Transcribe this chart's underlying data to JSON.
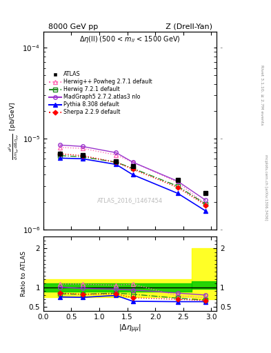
{
  "title_left": "8000 GeV pp",
  "title_right": "Z (Drell-Yan)",
  "subtitle": "$\\Delta\\eta$(ll) (500 < $m_{ll}$ < 1500 GeV)",
  "watermark": "ATLAS_2016_I1467454",
  "right_label_top": "Rivet 3.1.10, ≥ 2.7M events",
  "right_label_bottom": "mcplots.cern.ch [arXiv:1306.3436]",
  "ylabel_ratio": "Ratio to ATLAS",
  "xlabel": "$|\\Delta\\eta_{\\mu\\mu}|$",
  "xlim": [
    0,
    3.1
  ],
  "ylim_main": [
    1e-06,
    0.00015
  ],
  "ylim_ratio": [
    0.4,
    2.3
  ],
  "x_data": [
    0.3,
    0.7,
    1.3,
    1.6,
    2.4,
    2.9
  ],
  "atlas_y": [
    6.8e-06,
    6.6e-06,
    5.6e-06,
    5e-06,
    3.5e-06,
    2.5e-06
  ],
  "herwig_powheg_y": [
    8e-06,
    7.8e-06,
    6.6e-06,
    5.5e-06,
    3.3e-06,
    1.9e-06
  ],
  "herwig721_y": [
    6.5e-06,
    6.3e-06,
    5.5e-06,
    4.7e-06,
    3e-06,
    1.9e-06
  ],
  "madgraph_y": [
    8.5e-06,
    8.2e-06,
    7e-06,
    5.5e-06,
    3.4e-06,
    2.1e-06
  ],
  "pythia_y": [
    6.1e-06,
    6e-06,
    5.2e-06,
    4e-06,
    2.5e-06,
    1.6e-06
  ],
  "sherpa_y": [
    6.8e-06,
    6.5e-06,
    5.5e-06,
    4.6e-06,
    2.9e-06,
    1.85e-06
  ],
  "herwig_powheg_ratio": [
    1.08,
    1.08,
    1.05,
    1.08,
    0.78,
    0.73
  ],
  "herwig721_ratio": [
    0.83,
    0.82,
    0.85,
    0.82,
    0.72,
    0.67
  ],
  "madgraph_ratio": [
    1.0,
    0.97,
    0.95,
    0.93,
    0.85,
    0.8
  ],
  "pythia_ratio": [
    0.75,
    0.74,
    0.79,
    0.64,
    0.63,
    0.63
  ],
  "sherpa_ratio": [
    0.85,
    0.82,
    0.83,
    0.73,
    0.69,
    0.66
  ],
  "color_atlas": "#000000",
  "color_herwig_powheg": "#ff69b4",
  "color_herwig721": "#228B22",
  "color_madgraph": "#9932CC",
  "color_pythia": "#0000FF",
  "color_sherpa": "#FF0000",
  "color_band_yellow": "#FFFF00",
  "color_band_green": "#00CC00"
}
